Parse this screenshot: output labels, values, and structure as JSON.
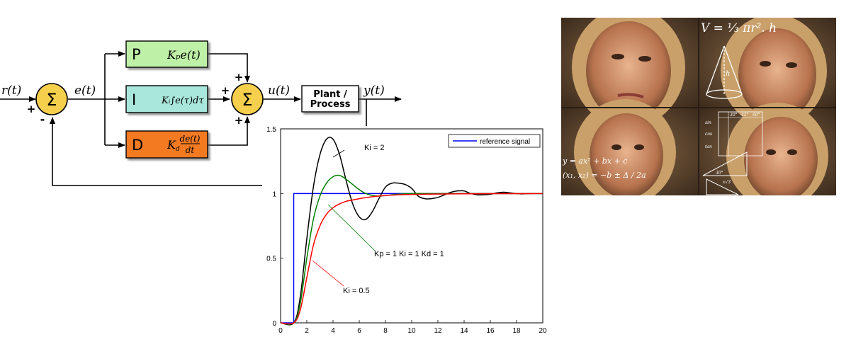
{
  "block_diagram": {
    "input_label": "r(t)",
    "error_label": "e(t)",
    "control_label": "u(t)",
    "output_label": "y(t)",
    "sum_symbol": "Σ",
    "sum1_plus": "+",
    "sum1_minus": "-",
    "sum2_plus_top": "+",
    "sum2_plus_left": "+",
    "sum2_plus_bottom": "+",
    "p_block": {
      "letter": "P",
      "expr": "Kₚe(t)",
      "color": "#bff0a8"
    },
    "i_block": {
      "letter": "I",
      "expr": "Kᵢ∫e(τ)dτ",
      "color": "#a9e6db"
    },
    "d_block": {
      "letter": "D",
      "expr_coef": "K",
      "expr_sub": "d",
      "expr_num": "de(t)",
      "expr_den": "dt",
      "color": "#f47a20"
    },
    "plant_line1": "Plant /",
    "plant_line2": "Process",
    "sum_color": "#f6d04d"
  },
  "chart_data": {
    "type": "line",
    "xlim": [
      0,
      20
    ],
    "ylim": [
      0,
      1.5
    ],
    "x_ticks": [
      "0",
      "2",
      "4",
      "6",
      "8",
      "10",
      "12",
      "14",
      "16",
      "18",
      "20"
    ],
    "y_ticks": [
      "0",
      "0.5",
      "1",
      "1.5"
    ],
    "legend": {
      "position": "top-right",
      "entry": "reference signal"
    },
    "annotations": [
      "Ki = 2",
      "Kp = 1  Ki = 1  Kd = 1",
      "Ki = 0.5"
    ],
    "series": [
      {
        "name": "reference signal",
        "color": "#0000ff",
        "x": [
          0,
          1,
          1,
          20
        ],
        "y": [
          0,
          0,
          1,
          1
        ]
      },
      {
        "color": "#000000",
        "x": [
          0,
          1,
          1.5,
          2,
          2.5,
          3,
          3.5,
          4,
          4.5,
          5,
          5.5,
          6,
          6.5,
          7,
          7.5,
          8,
          8.5,
          9,
          9.5,
          10,
          10.5,
          11,
          11.5,
          12,
          12.5,
          13,
          13.5,
          14,
          14.5,
          15,
          15.5,
          16,
          16.5,
          17,
          17.5,
          18,
          18.5,
          19,
          20
        ],
        "y": [
          0,
          0,
          0.2,
          0.65,
          1.05,
          1.3,
          1.42,
          1.42,
          1.3,
          1.1,
          0.92,
          0.82,
          0.8,
          0.86,
          0.96,
          1.05,
          1.08,
          1.08,
          1.07,
          1.04,
          0.98,
          0.96,
          0.96,
          0.97,
          0.99,
          1.01,
          1.02,
          1.02,
          1.0,
          0.99,
          0.99,
          0.995,
          1.005,
          1.01,
          1.005,
          1.0,
          0.997,
          1.0,
          1.0
        ]
      },
      {
        "color": "#008000",
        "x": [
          0,
          1,
          1.5,
          2,
          2.5,
          3,
          3.5,
          4,
          4.5,
          5,
          5.5,
          6,
          6.5,
          7,
          7.5,
          8,
          9,
          10,
          11,
          12,
          14,
          16,
          18,
          20
        ],
        "y": [
          0,
          0,
          0.15,
          0.5,
          0.8,
          0.98,
          1.08,
          1.13,
          1.14,
          1.11,
          1.07,
          1.03,
          1.0,
          0.985,
          0.98,
          0.985,
          0.995,
          1.0,
          1.0,
          1.0,
          1.0,
          1.0,
          1.0,
          1.0
        ]
      },
      {
        "color": "#ff0000",
        "x": [
          0,
          1,
          1.5,
          2,
          2.5,
          3,
          3.5,
          4,
          4.5,
          5,
          5.5,
          6,
          7,
          8,
          9,
          10,
          12,
          14,
          16,
          18,
          20
        ],
        "y": [
          0,
          0,
          0.1,
          0.35,
          0.6,
          0.75,
          0.84,
          0.89,
          0.92,
          0.94,
          0.95,
          0.96,
          0.975,
          0.985,
          0.99,
          0.993,
          0.996,
          0.998,
          0.999,
          0.999,
          1.0
        ]
      }
    ]
  },
  "meme": {
    "formula_volume": "V = ⅓ πr². h",
    "formula_quadratic": "y = ax² + bx + c",
    "formula_roots": "(x₁, x₂) = −b ± Δ / 2a",
    "trig_labels": [
      "sin",
      "cos",
      "tan",
      "30°",
      "45°",
      "60°"
    ],
    "cone_label": "h",
    "tri_labels": [
      "30°",
      "x√3",
      "2x",
      "x"
    ]
  }
}
